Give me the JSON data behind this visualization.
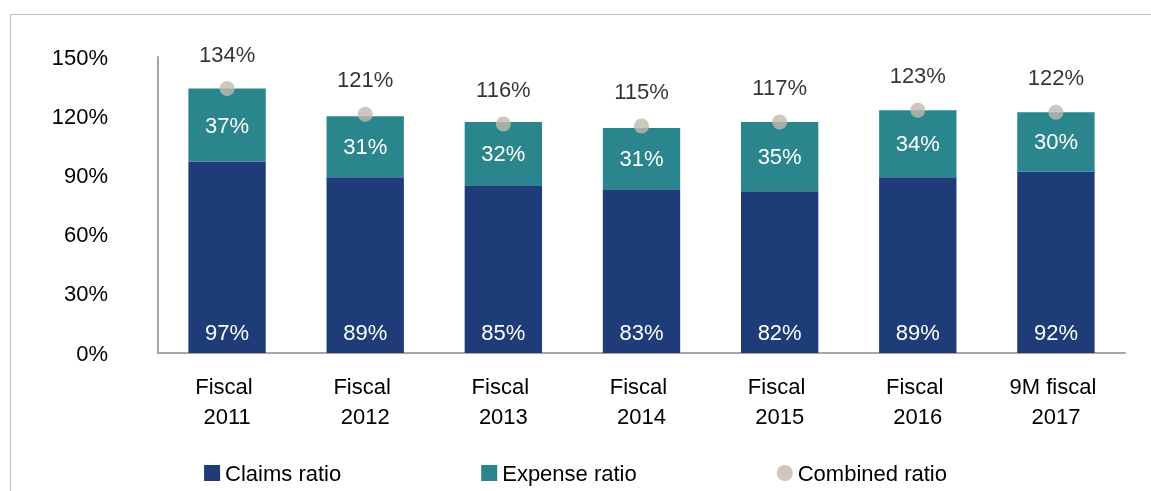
{
  "chart_data": {
    "type": "bar",
    "stacked": true,
    "categories": [
      "Fiscal 2011",
      "Fiscal 2012",
      "Fiscal 2013",
      "Fiscal 2014",
      "Fiscal 2015",
      "Fiscal 2016",
      "9M fiscal 2017"
    ],
    "series": [
      {
        "name": "Claims ratio",
        "color": "#1d3c78",
        "values": [
          97,
          89,
          85,
          83,
          82,
          89,
          92
        ],
        "value_labels": [
          "97%",
          "89%",
          "85%",
          "83%",
          "82%",
          "89%",
          "92%"
        ]
      },
      {
        "name": "Expense ratio",
        "color": "#2a868c",
        "values": [
          37,
          31,
          32,
          31,
          35,
          34,
          30
        ],
        "value_labels": [
          "37%",
          "31%",
          "32%",
          "31%",
          "35%",
          "34%",
          "30%"
        ]
      },
      {
        "name": "Combined ratio",
        "type": "scatter",
        "color": "#c1b9ad",
        "marker": "circle",
        "values": [
          134,
          121,
          116,
          115,
          117,
          123,
          122
        ],
        "value_labels": [
          "134%",
          "121%",
          "116%",
          "115%",
          "117%",
          "123%",
          "122%"
        ]
      }
    ],
    "ylim": [
      0,
      150
    ],
    "yticks": [
      {
        "value": 0,
        "label": "0%"
      },
      {
        "value": 30,
        "label": "30%"
      },
      {
        "value": 60,
        "label": "60%"
      },
      {
        "value": 90,
        "label": "90%"
      },
      {
        "value": 120,
        "label": "120%"
      },
      {
        "value": 150,
        "label": "150%"
      }
    ],
    "grid": false,
    "legend": "bottom"
  }
}
